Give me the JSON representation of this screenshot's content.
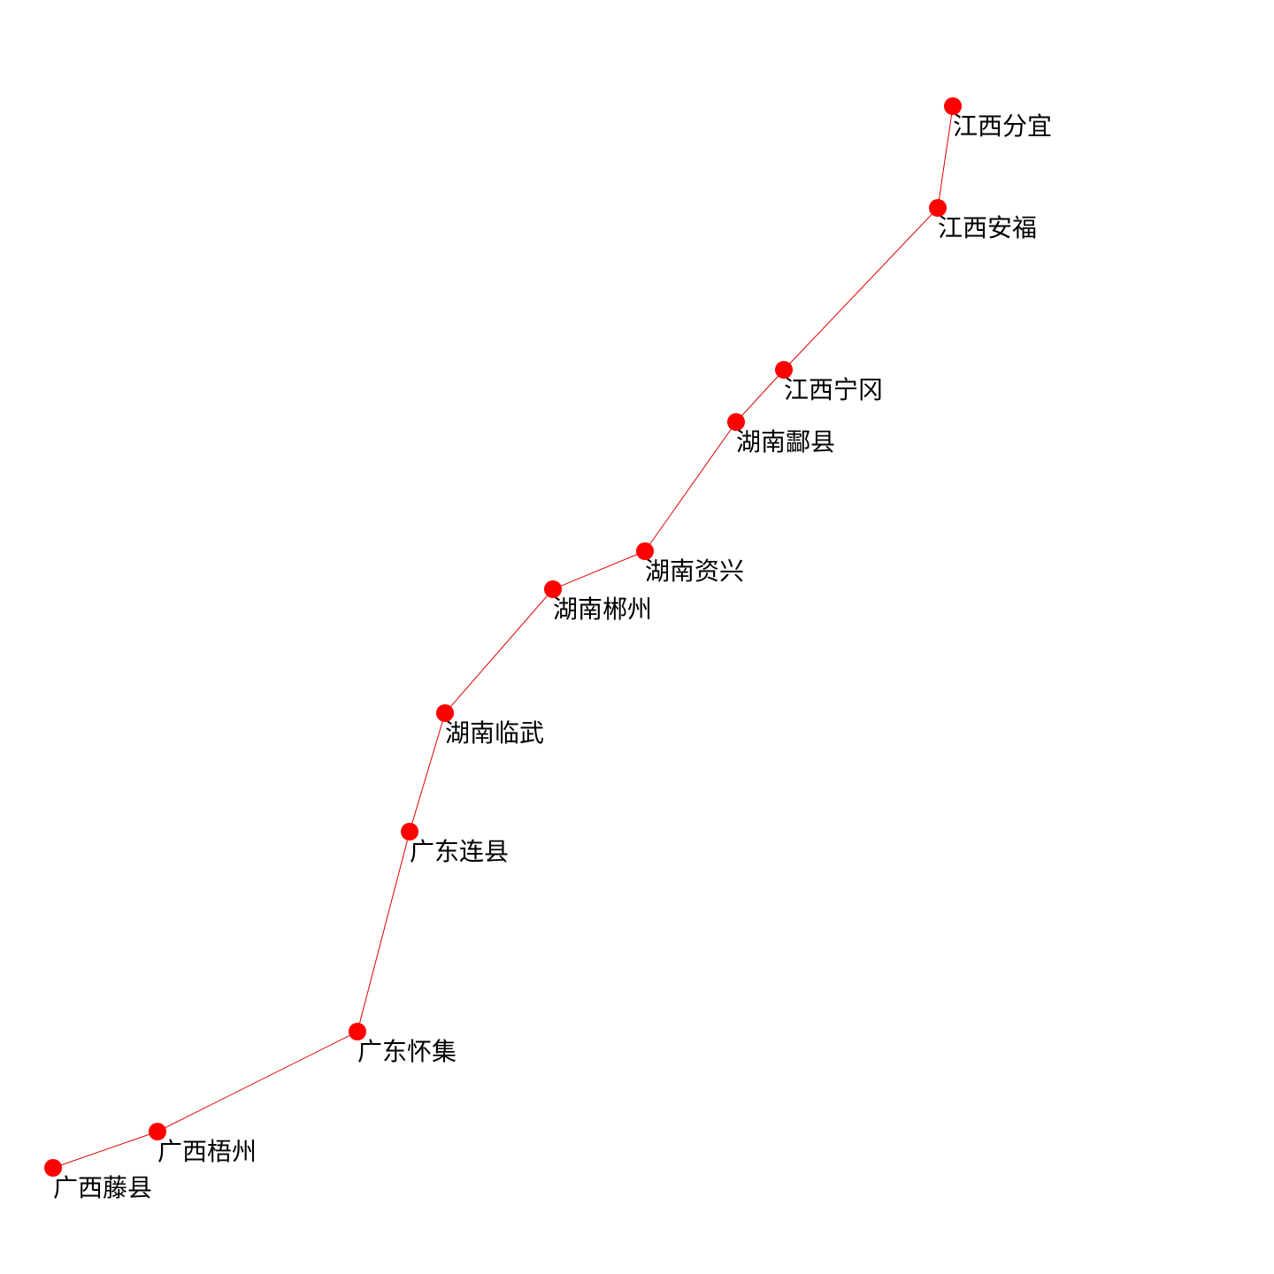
{
  "route": {
    "line_color": "#e00000",
    "node_color": "#ff0000",
    "stations": [
      {
        "label": "江西分宜"
      },
      {
        "label": "江西安福"
      },
      {
        "label": "江西宁冈"
      },
      {
        "label": "湖南酃县"
      },
      {
        "label": "湖南资兴"
      },
      {
        "label": "湖南郴州"
      },
      {
        "label": "湖南临武"
      },
      {
        "label": "广东连县"
      },
      {
        "label": "广东怀集"
      },
      {
        "label": "广西梧州"
      },
      {
        "label": "广西藤县"
      }
    ]
  }
}
